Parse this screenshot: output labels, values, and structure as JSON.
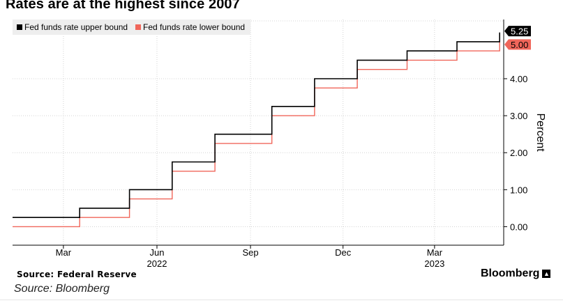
{
  "title": "Rates are at the highest since 2007",
  "source": "Source: Federal Reserve",
  "brand": "Bloomberg",
  "caption": "Source: Bloomberg",
  "chart_data": {
    "type": "line",
    "step": true,
    "ylabel": "Percent",
    "y_axis_side": "right",
    "ylim": [
      -0.5,
      5.6
    ],
    "y_ticks": [
      0,
      1,
      2,
      3,
      4
    ],
    "y_tick_labels": [
      "0.00",
      "1.00",
      "2.00",
      "3.00",
      "4.00"
    ],
    "xlim": [
      "2022-01-10",
      "2023-05-08"
    ],
    "x_ticks": [
      {
        "date": "2022-03-01",
        "label": "Mar",
        "year_label": ""
      },
      {
        "date": "2022-06-01",
        "label": "Jun",
        "year_label": "2022"
      },
      {
        "date": "2022-09-01",
        "label": "Sep",
        "year_label": ""
      },
      {
        "date": "2022-12-01",
        "label": "Dec",
        "year_label": ""
      },
      {
        "date": "2023-03-01",
        "label": "Mar",
        "year_label": "2023"
      }
    ],
    "grid": true,
    "legend_position": "top-left",
    "series": [
      {
        "name": "Fed funds rate upper bound",
        "color": "#000000",
        "end_label": "5.25",
        "points": [
          {
            "x": "2022-01-10",
            "y": 0.25
          },
          {
            "x": "2022-03-17",
            "y": 0.5
          },
          {
            "x": "2022-05-05",
            "y": 1.0
          },
          {
            "x": "2022-06-16",
            "y": 1.75
          },
          {
            "x": "2022-07-28",
            "y": 2.5
          },
          {
            "x": "2022-09-22",
            "y": 3.25
          },
          {
            "x": "2022-11-03",
            "y": 4.0
          },
          {
            "x": "2022-12-15",
            "y": 4.5
          },
          {
            "x": "2023-02-02",
            "y": 4.75
          },
          {
            "x": "2023-03-23",
            "y": 5.0
          },
          {
            "x": "2023-05-04",
            "y": 5.25
          }
        ]
      },
      {
        "name": "Fed funds rate lower bound",
        "color": "#f0665a",
        "end_label": "5.00",
        "points": [
          {
            "x": "2022-01-10",
            "y": 0.0
          },
          {
            "x": "2022-03-17",
            "y": 0.25
          },
          {
            "x": "2022-05-05",
            "y": 0.75
          },
          {
            "x": "2022-06-16",
            "y": 1.5
          },
          {
            "x": "2022-07-28",
            "y": 2.25
          },
          {
            "x": "2022-09-22",
            "y": 3.0
          },
          {
            "x": "2022-11-03",
            "y": 3.75
          },
          {
            "x": "2022-12-15",
            "y": 4.25
          },
          {
            "x": "2023-02-02",
            "y": 4.5
          },
          {
            "x": "2023-03-23",
            "y": 4.75
          },
          {
            "x": "2023-05-04",
            "y": 5.0
          }
        ]
      }
    ]
  }
}
